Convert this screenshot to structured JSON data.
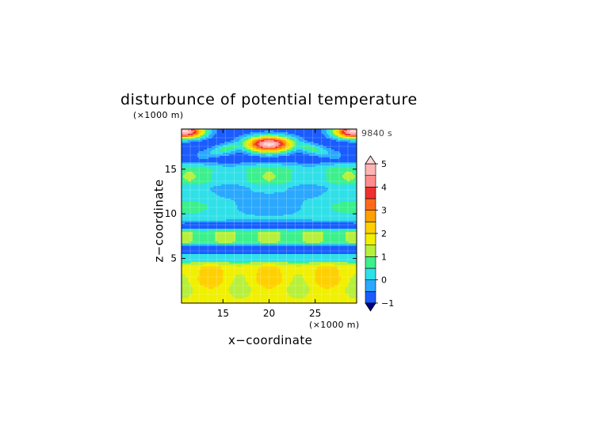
{
  "chart_data": {
    "type": "heatmap",
    "title": "disturbunce of potential temperature",
    "time_label": "9840 s",
    "xlabel": "x−coordinate",
    "ylabel": "z−coordinate",
    "x_unit": "(×1000 m)",
    "y_unit": "(×1000 m)",
    "xlim": [
      10.5,
      29.5
    ],
    "ylim": [
      0,
      19.5
    ],
    "x_ticks": [
      "15",
      "20",
      "25"
    ],
    "y_ticks": [
      "5",
      "10",
      "15"
    ],
    "grid": true,
    "colorbar": {
      "ticks": [
        "5",
        "4",
        "3",
        "2",
        "1",
        "0",
        "−1"
      ],
      "levels": [
        -1,
        -0.5,
        0,
        0.5,
        1,
        1.5,
        2,
        2.5,
        3,
        3.5,
        4,
        4.5,
        5
      ],
      "colors": [
        "#0000cd",
        "#1a5cff",
        "#2aa8ff",
        "#30e0e8",
        "#3cf08c",
        "#b6f03c",
        "#f0f000",
        "#ffd000",
        "#ffa000",
        "#ff6a1a",
        "#f03030",
        "#ff8c8c",
        "#ffb4b4",
        "#ffd9d9"
      ],
      "extend": "both"
    },
    "field_description": "potential temperature disturbance in degrees K over x in [10.5,29.5] km and z in [0,19.5] km",
    "bands": [
      {
        "z": [
          0,
          2
        ],
        "value": 1.6
      },
      {
        "z": [
          2,
          4.5
        ],
        "value": 1.9
      },
      {
        "z": [
          4.5,
          5.5
        ],
        "value": 0.4
      },
      {
        "z": [
          5.5,
          6.5
        ],
        "value": -0.9
      },
      {
        "z": [
          6.5,
          8.3
        ],
        "value": 1.0
      },
      {
        "z": [
          8.3,
          9.0
        ],
        "value": -0.9
      },
      {
        "z": [
          9.0,
          11.5
        ],
        "value": 0.2
      },
      {
        "z": [
          11.5,
          13.3
        ],
        "value": 0.0
      },
      {
        "z": [
          13.3,
          15.5
        ],
        "value": 0.6
      },
      {
        "z": [
          15.5,
          17.3
        ],
        "value": -0.7
      },
      {
        "z": [
          17.3,
          19.5
        ],
        "value": -0.9
      }
    ],
    "hotspots": [
      {
        "x": 10.8,
        "z": 19.2,
        "peak": 5.0,
        "width": 2.2
      },
      {
        "x": 29.2,
        "z": 19.2,
        "peak": 5.0,
        "width": 2.2
      },
      {
        "x": 20.0,
        "z": 17.8,
        "peak": 5.0,
        "width": 2.6
      }
    ]
  }
}
